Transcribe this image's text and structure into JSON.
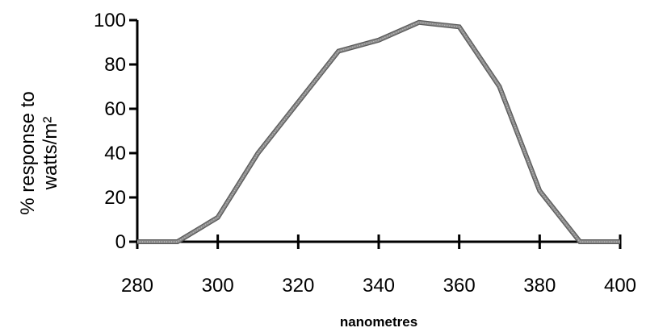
{
  "chart_data": {
    "type": "line",
    "title": "",
    "xlabel": "nanometres",
    "ylabel_lines": [
      "% response to",
      "watts/m²"
    ],
    "xlim": [
      280,
      400
    ],
    "ylim": [
      0,
      100
    ],
    "x_ticks": [
      280,
      300,
      320,
      340,
      360,
      380,
      400
    ],
    "y_ticks": [
      0,
      20,
      40,
      60,
      80,
      100
    ],
    "grid": false,
    "legend": "none",
    "series": [
      {
        "x": [
          280,
          290,
          300,
          310,
          320,
          330,
          340,
          350,
          360,
          370,
          380,
          390,
          400
        ],
        "y": [
          0,
          0,
          11,
          40,
          63,
          86,
          91,
          99,
          97,
          70,
          23,
          0,
          0
        ]
      }
    ],
    "colors": {
      "line": "#8c8c8c",
      "axis": "#000000"
    }
  }
}
